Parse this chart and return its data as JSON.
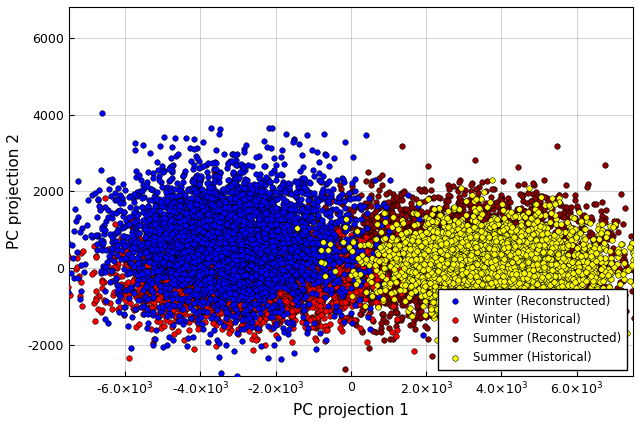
{
  "title": "",
  "xlabel": "PC projection 1",
  "ylabel": "PC projection 2",
  "xlim": [
    -7500,
    7500
  ],
  "ylim": [
    -2800,
    6800
  ],
  "xticks": [
    -6000,
    -4000,
    -2000,
    0,
    2000,
    4000,
    6000
  ],
  "yticks": [
    -2000,
    0,
    2000,
    4000,
    6000
  ],
  "series": [
    {
      "label": "Winter (Reconstructed)",
      "color": "#0000FF",
      "edgecolor": "#000000",
      "center_x": -3200,
      "center_y": 700,
      "spread_x": 1600,
      "spread_y": 950,
      "n": 4000,
      "zorder": 4,
      "alpha": 1.0
    },
    {
      "label": "Winter (Historical)",
      "color": "#FF0000",
      "edgecolor": "#000000",
      "center_x": -2800,
      "center_y": -150,
      "spread_x": 1600,
      "spread_y": 600,
      "n": 4000,
      "zorder": 3,
      "alpha": 1.0
    },
    {
      "label": "Summer (Reconstructed)",
      "color": "#8B0000",
      "edgecolor": "#000000",
      "center_x": 2800,
      "center_y": 300,
      "spread_x": 2000,
      "spread_y": 800,
      "n": 4000,
      "zorder": 2,
      "alpha": 1.0
    },
    {
      "label": "Summer (Historical)",
      "color": "#FFFF00",
      "edgecolor": "#000000",
      "center_x": 3800,
      "center_y": 150,
      "spread_x": 1500,
      "spread_y": 580,
      "n": 3500,
      "zorder": 5,
      "alpha": 1.0
    }
  ],
  "markersize": 4,
  "linewidth": 0.4,
  "legend_loc": "lower right",
  "grid": true,
  "background_color": "#ffffff"
}
